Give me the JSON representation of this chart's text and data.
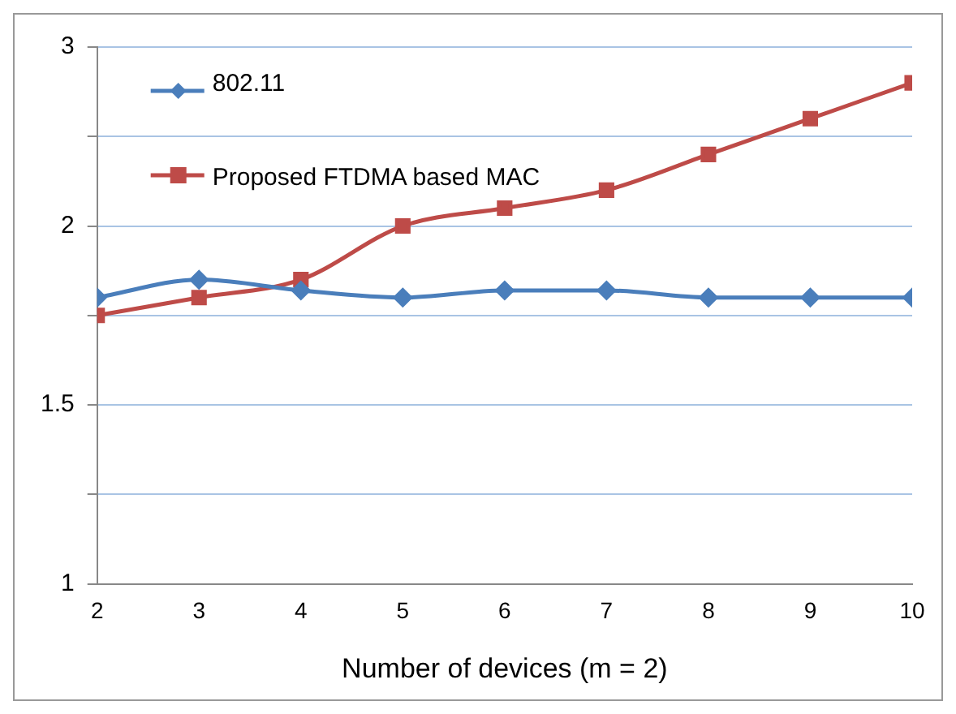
{
  "chart_data": {
    "type": "line",
    "xlabel": "Number of devices (m = 2)",
    "x": [
      2,
      3,
      4,
      5,
      6,
      7,
      8,
      9,
      10
    ],
    "xlim": [
      2,
      10
    ],
    "xticks": [
      2,
      3,
      4,
      5,
      6,
      7,
      8,
      9,
      10
    ],
    "ylim": [
      1,
      2.5
    ],
    "yticks": [
      1,
      {
        "value": 1.25,
        "label": null
      },
      1.5,
      {
        "value": 1.75,
        "label": null
      },
      2,
      {
        "value": 2.25,
        "label": null
      },
      {
        "value": 2.5,
        "label": "3"
      }
    ],
    "grid": "y",
    "legend": "top left",
    "series": [
      {
        "name": "802.11",
        "color": "#4a7ebb",
        "marker": "diamond",
        "values": [
          1.8,
          1.85,
          1.82,
          1.8,
          1.82,
          1.82,
          1.8,
          1.8,
          1.8
        ]
      },
      {
        "name": "Proposed FTDMA based MAC",
        "color": "#be4b48",
        "marker": "square",
        "values": [
          1.75,
          1.8,
          1.85,
          2.0,
          2.05,
          2.1,
          2.2,
          2.3,
          2.4
        ]
      }
    ]
  }
}
